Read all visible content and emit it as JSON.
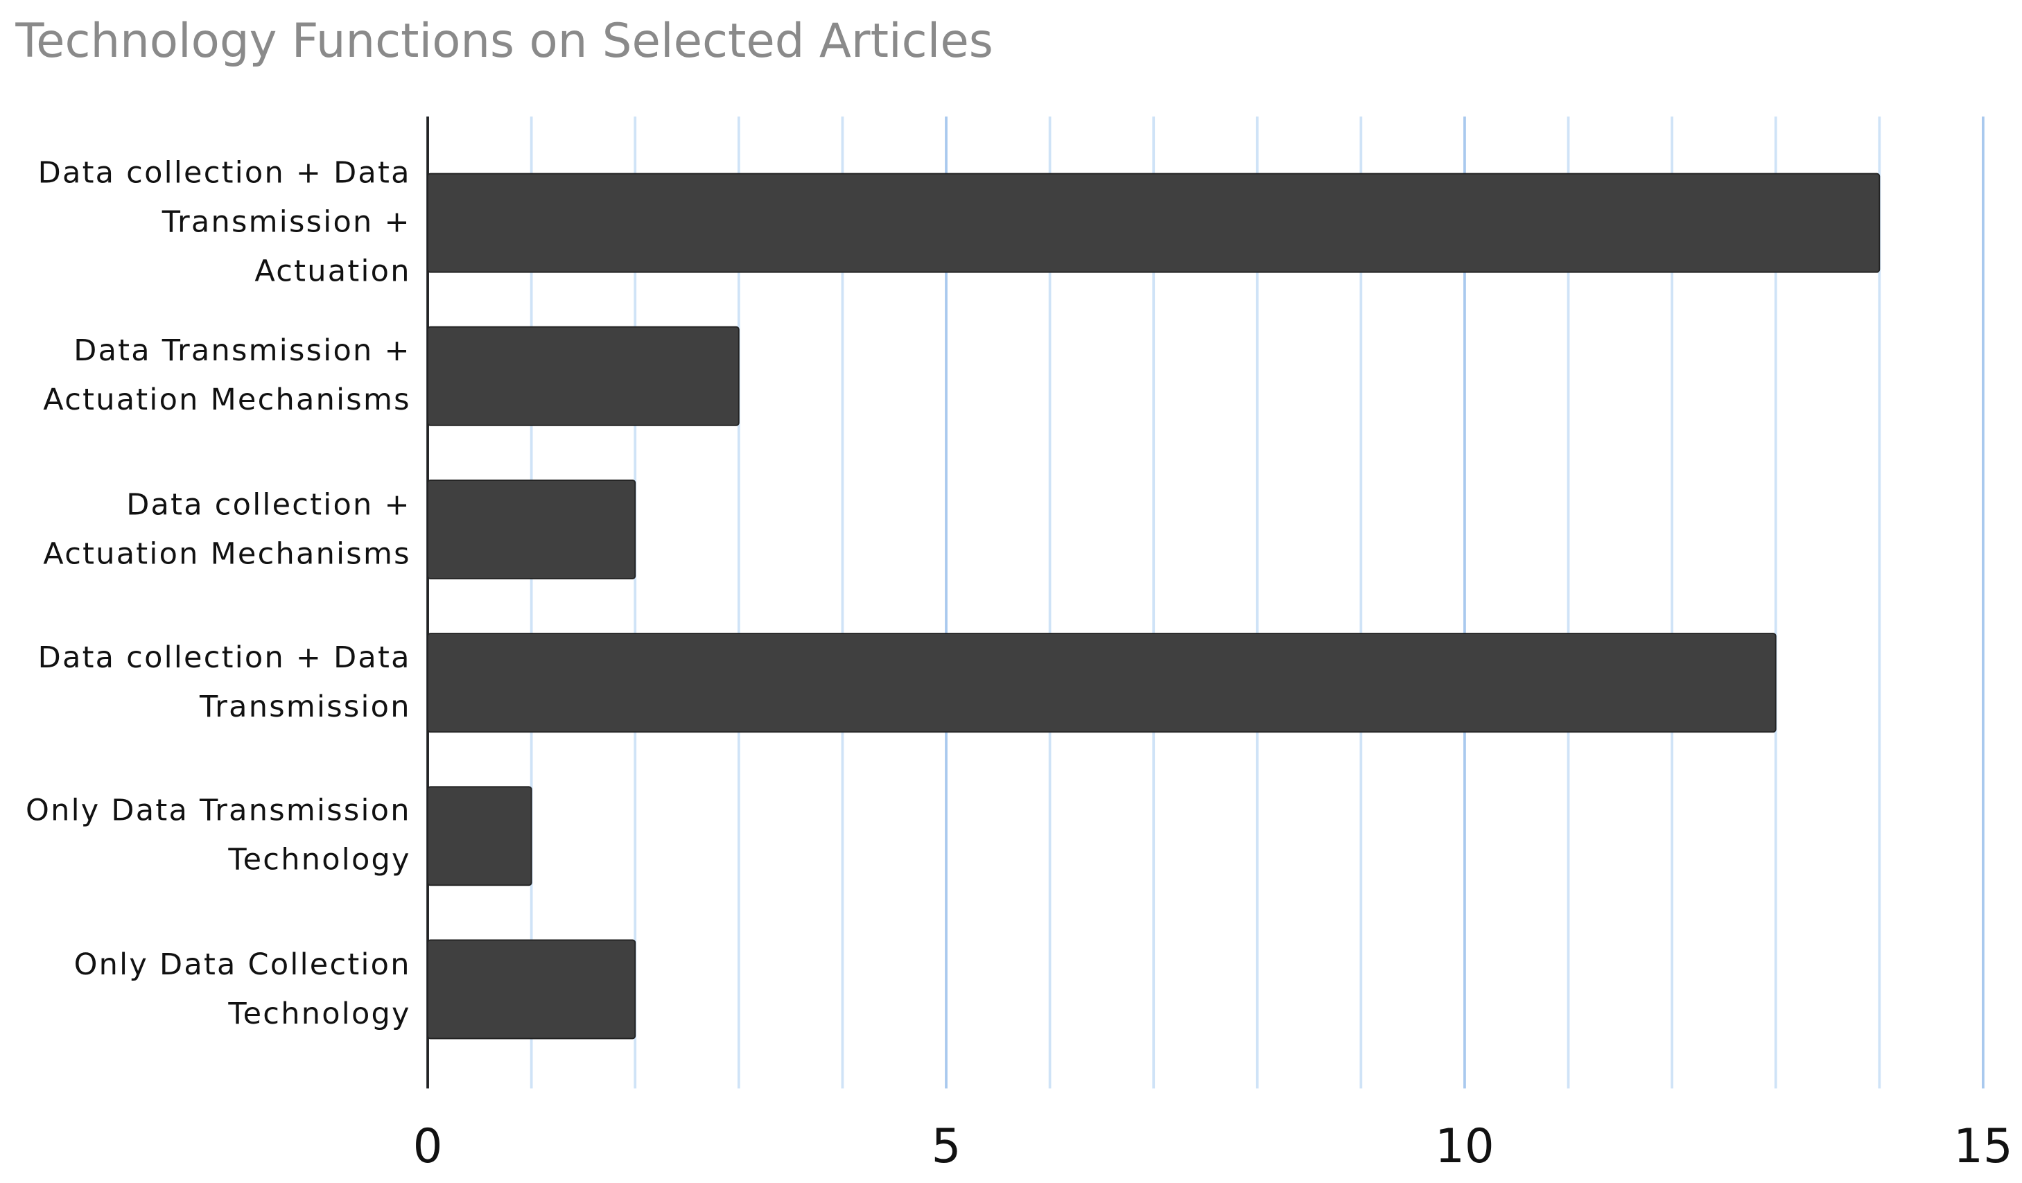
{
  "chart_data": {
    "type": "barh",
    "title": "Technology Functions on Selected Articles",
    "categories": [
      "Data collection + Data Transmission + Actuation",
      "Data Transmission + Actuation Mechanisms",
      "Data collection + Actuation Mechanisms",
      "Data collection + Data Transmission",
      "Only Data Transmission Technology",
      "Only Data Collection Technology"
    ],
    "values": [
      14,
      3,
      2,
      13,
      1,
      2
    ],
    "color": "#404040",
    "xlim": [
      0,
      15
    ],
    "xticks": [
      0,
      5,
      10,
      15
    ],
    "xminorticks": [
      1,
      2,
      3,
      4,
      6,
      7,
      8,
      9,
      11,
      12,
      13,
      14
    ],
    "grid": true
  }
}
